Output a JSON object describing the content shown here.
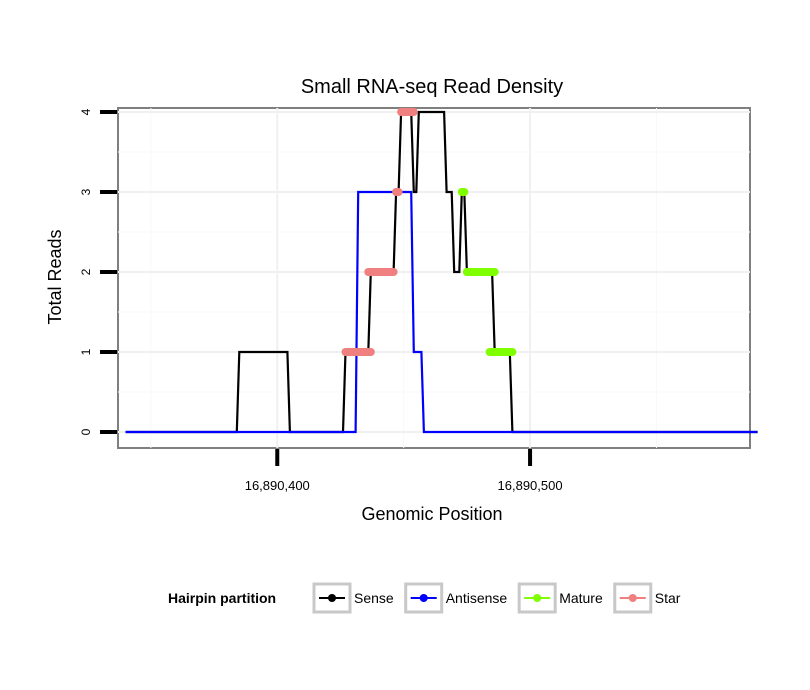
{
  "chart_data": {
    "type": "line",
    "title": "Small RNA-seq Read Density",
    "xlabel": "Genomic Position",
    "ylabel": "Total Reads",
    "xlim": [
      16890337,
      16890587
    ],
    "ylim": [
      -0.2,
      4.05
    ],
    "x_ticks": [
      16890400,
      16890500
    ],
    "x_tick_labels": [
      "16,890,400",
      "16,890,500"
    ],
    "y_ticks": [
      0,
      1,
      2,
      3,
      4
    ],
    "y_tick_labels": [
      "0",
      "1",
      "2",
      "3",
      "4"
    ],
    "grid": true,
    "legend": {
      "title": "Hairpin partition",
      "position": "bottom",
      "items": [
        {
          "name": "Sense",
          "color": "#000000"
        },
        {
          "name": "Antisense",
          "color": "#0000ff"
        },
        {
          "name": "Mature",
          "color": "#7fff00"
        },
        {
          "name": "Star",
          "color": "#f08080"
        }
      ]
    },
    "series": [
      {
        "name": "Sense",
        "color": "#000000",
        "x": [
          16890340,
          16890384,
          16890385,
          16890404,
          16890405,
          16890426,
          16890427,
          16890436,
          16890437,
          16890446,
          16890447,
          16890448,
          16890449,
          16890453,
          16890454,
          16890455,
          16890456,
          16890466,
          16890467,
          16890469,
          16890470,
          16890472,
          16890473,
          16890474,
          16890475,
          16890476,
          16890477,
          16890485,
          16890486,
          16890492,
          16890493,
          16890590
        ],
        "y": [
          0,
          0,
          1,
          1,
          0,
          0,
          1,
          1,
          2,
          2,
          3,
          3,
          4,
          4,
          3,
          3,
          4,
          4,
          3,
          3,
          2,
          2,
          3,
          3,
          2,
          2,
          2,
          2,
          1,
          1,
          0,
          0
        ]
      },
      {
        "name": "Antisense",
        "color": "#0000ff",
        "x": [
          16890340,
          16890431,
          16890432,
          16890453,
          16890454,
          16890457,
          16890458,
          16890590
        ],
        "y": [
          0,
          0,
          3,
          3,
          1,
          1,
          0,
          0
        ]
      },
      {
        "name": "Mature",
        "color": "#7fff00",
        "segments": [
          {
            "x": [
              16890473,
              16890474
            ],
            "y": 3
          },
          {
            "x": [
              16890475,
              16890486
            ],
            "y": 2
          },
          {
            "x": [
              16890484,
              16890493
            ],
            "y": 1
          }
        ]
      },
      {
        "name": "Star",
        "color": "#f08080",
        "segments": [
          {
            "x": [
              16890427,
              16890437
            ],
            "y": 1
          },
          {
            "x": [
              16890436,
              16890446
            ],
            "y": 2
          },
          {
            "x": [
              16890447,
              16890448
            ],
            "y": 3
          },
          {
            "x": [
              16890449,
              16890454
            ],
            "y": 4
          }
        ]
      }
    ]
  }
}
